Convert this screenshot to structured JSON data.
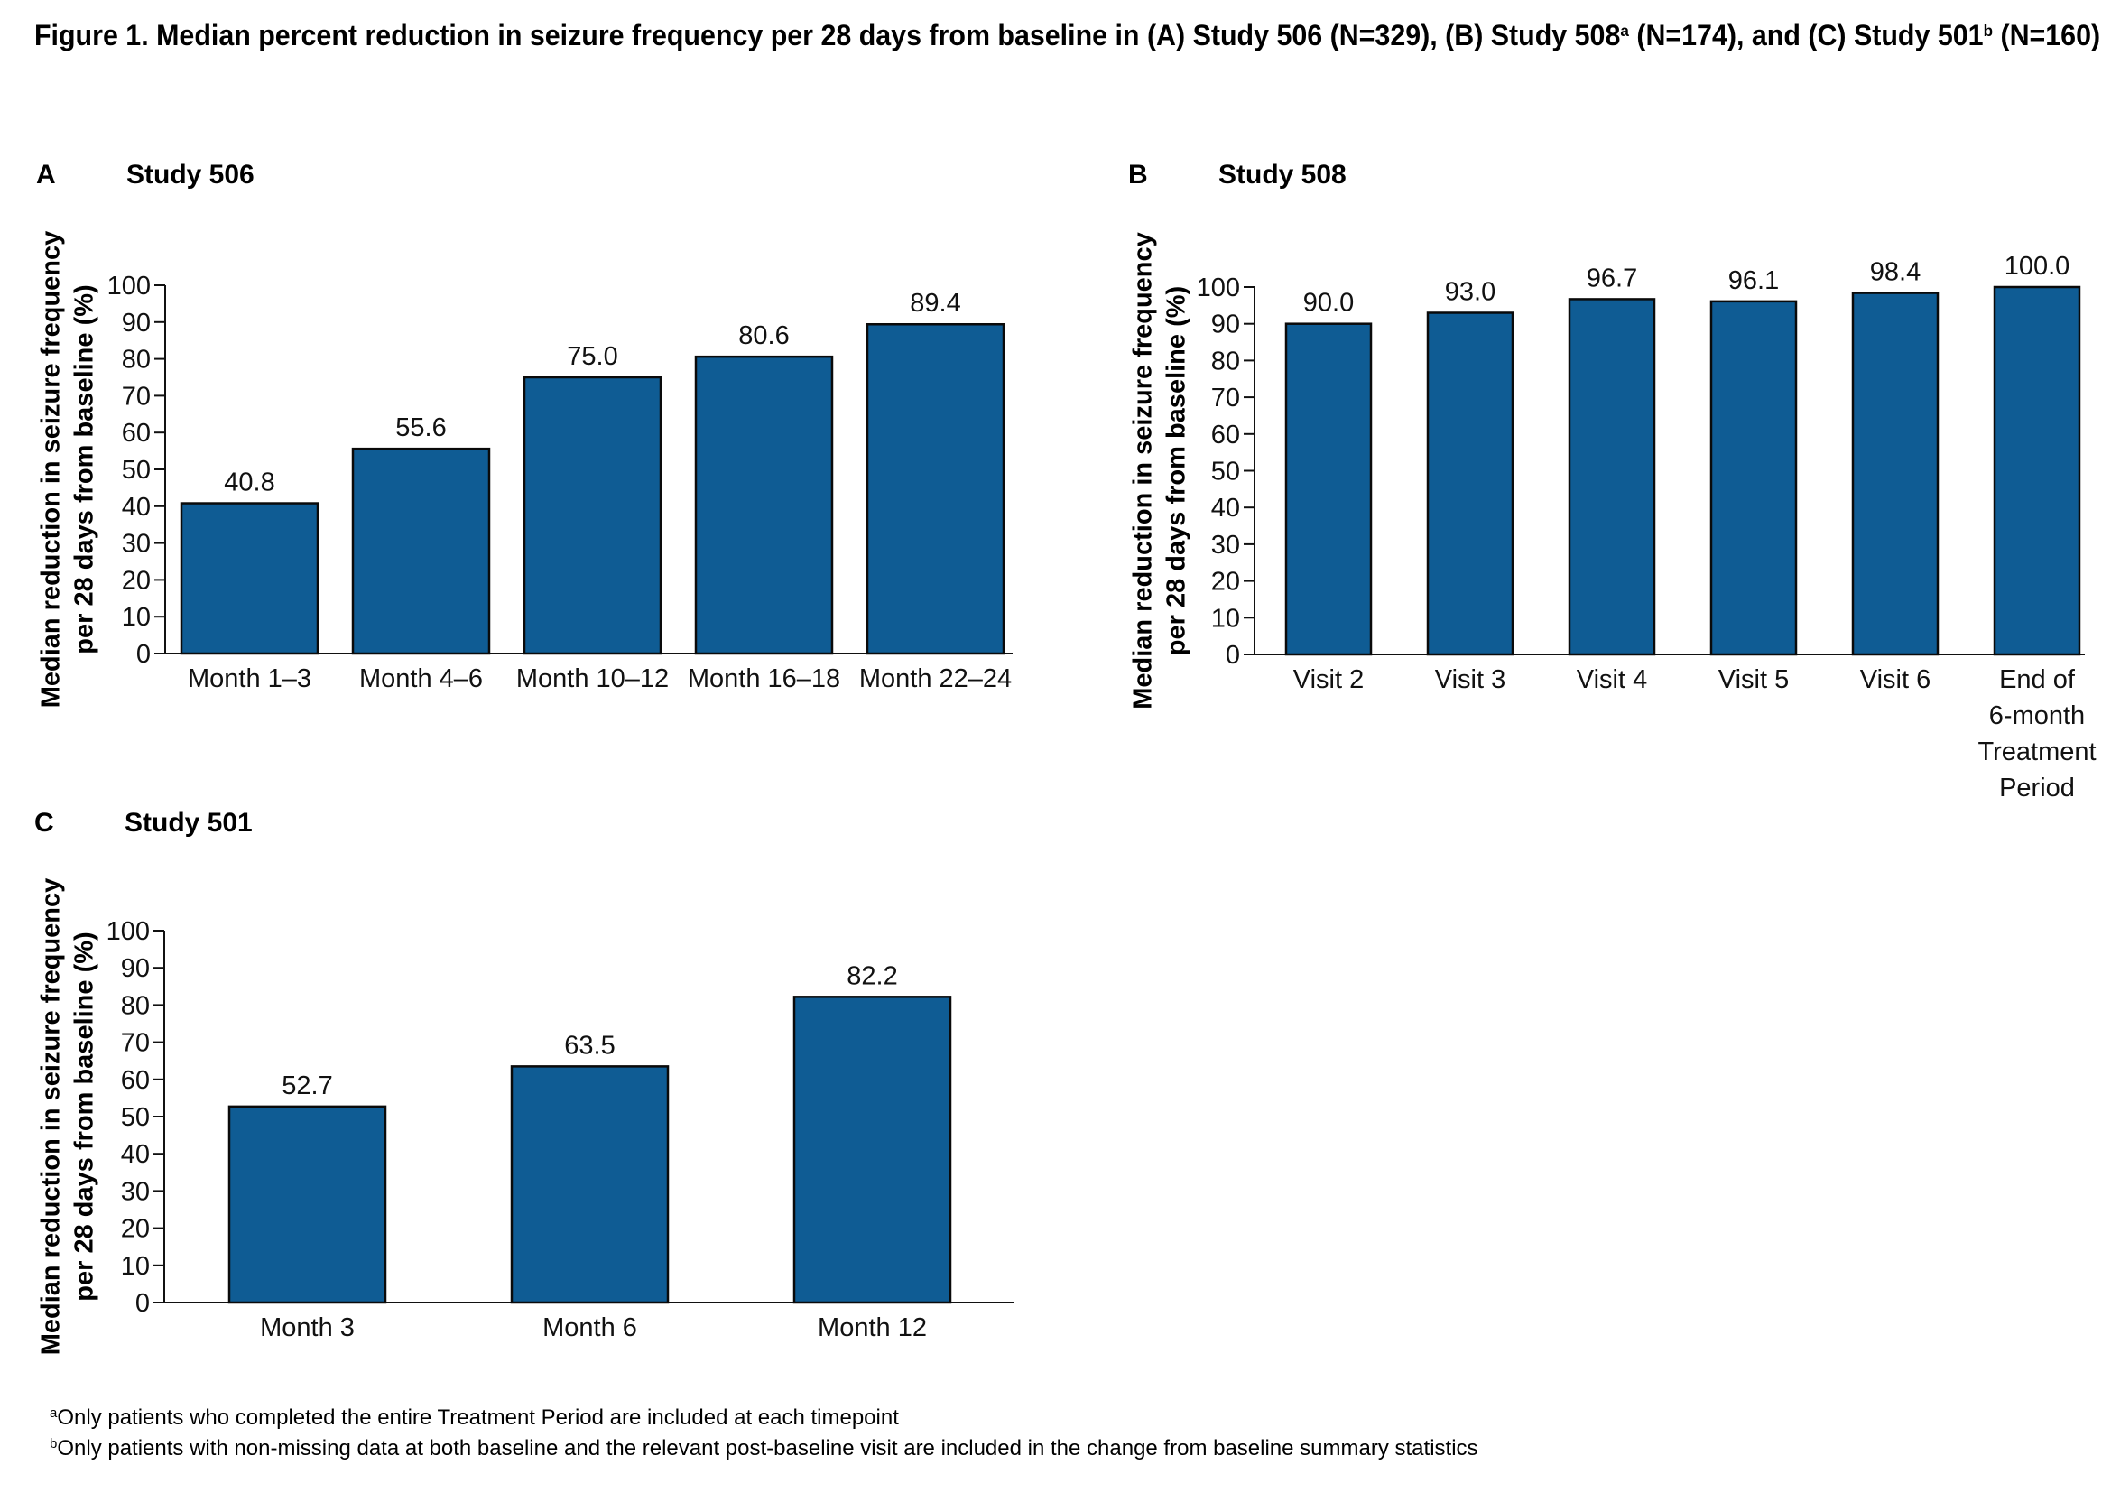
{
  "title": {
    "segments": [
      {
        "text": "Figure 1. Median percent reduction in seizure frequency per 28 days from baseline in (A) Study 506 (N=329), (B) Study 508",
        "sup": false
      },
      {
        "text": "a",
        "sup": true
      },
      {
        "text": " (N=174), and (C) Study 501",
        "sup": false
      },
      {
        "text": "b",
        "sup": true
      },
      {
        "text": " (N=160)",
        "sup": false
      }
    ]
  },
  "footnotes": [
    {
      "mark": "a",
      "text": "Only patients who completed the entire Treatment Period are included at each timepoint"
    },
    {
      "mark": "b",
      "text": "Only patients with non-missing data at both baseline and the relevant post-baseline visit are included in the change from baseline summary statistics"
    }
  ],
  "colors": {
    "bar": "#0f5c94",
    "bar_edge": "#0a0a0a"
  },
  "chart_data": [
    {
      "type": "bar",
      "panel": "A",
      "title": "Study 506",
      "ylabel": [
        "Median reduction in seizure frequency",
        "per 28 days from baseline (%)"
      ],
      "ylim": [
        0,
        100
      ],
      "yticks": [
        0,
        10,
        20,
        30,
        40,
        50,
        60,
        70,
        80,
        90,
        100
      ],
      "grid": false,
      "categories": [
        "Month 1–3",
        "Month 4–6",
        "Month 10–12",
        "Month 16–18",
        "Month 22–24"
      ],
      "values": [
        40.8,
        55.6,
        75.0,
        80.6,
        89.4
      ],
      "labels": [
        "40.8",
        "55.6",
        "75.0",
        "80.6",
        "89.4"
      ]
    },
    {
      "type": "bar",
      "panel": "B",
      "title": "Study 508",
      "ylabel": [
        "Median reduction in seizure frequency",
        "per 28 days from baseline (%)"
      ],
      "ylim": [
        0,
        100
      ],
      "yticks": [
        0,
        10,
        20,
        30,
        40,
        50,
        60,
        70,
        80,
        90,
        100
      ],
      "grid": false,
      "categories": [
        "Visit 2",
        "Visit 3",
        "Visit 4",
        "Visit 5",
        "Visit 6",
        "End of\n6-month\nTreatment\nPeriod"
      ],
      "values": [
        90.0,
        93.0,
        96.7,
        96.1,
        98.4,
        100.0
      ],
      "labels": [
        "90.0",
        "93.0",
        "96.7",
        "96.1",
        "98.4",
        "100.0"
      ]
    },
    {
      "type": "bar",
      "panel": "C",
      "title": "Study 501",
      "ylabel": [
        "Median reduction in seizure frequency",
        "per 28 days from baseline (%)"
      ],
      "ylim": [
        0,
        100
      ],
      "yticks": [
        0,
        10,
        20,
        30,
        40,
        50,
        60,
        70,
        80,
        90,
        100
      ],
      "grid": false,
      "categories": [
        "Month 3",
        "Month 6",
        "Month 12"
      ],
      "values": [
        52.7,
        63.5,
        82.2
      ],
      "labels": [
        "52.7",
        "63.5",
        "82.2"
      ]
    }
  ]
}
